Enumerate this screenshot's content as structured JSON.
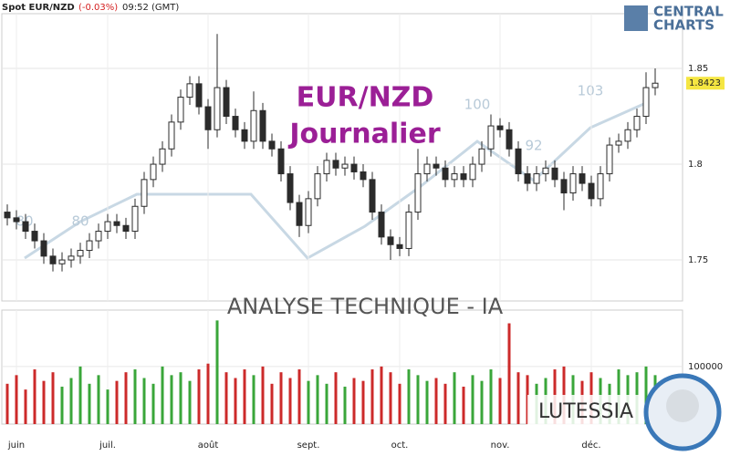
{
  "chart_data": {
    "type": "candlestick",
    "header": {
      "symbol": "Spot EUR/NZD",
      "change": "(-0.03%)",
      "time": "09:52 (GMT)"
    },
    "watermark": {
      "pair": "EUR/NZD",
      "period": "Journalier",
      "analysis": "ANALYSE TECHNIQUE - IA",
      "brand": "LUTESSIA"
    },
    "logo": [
      "CENTRAL",
      "CHARTS"
    ],
    "annotations": [
      "80",
      "80",
      "100",
      "92",
      "103"
    ],
    "candle_color": "#2b2b2b",
    "up_color": "#3aa63a",
    "down_color": "#cc2a2a",
    "open": [
      1.775,
      1.772,
      1.77,
      1.765,
      1.76,
      1.752,
      1.748,
      1.75,
      1.752,
      1.755,
      1.76,
      1.765,
      1.77,
      1.768,
      1.765,
      1.778,
      1.792,
      1.8,
      1.808,
      1.822,
      1.835,
      1.842,
      1.83,
      1.818,
      1.84,
      1.825,
      1.818,
      1.812,
      1.828,
      1.812,
      1.808,
      1.795,
      1.78,
      1.768,
      1.782,
      1.795,
      1.802,
      1.798,
      1.8,
      1.796,
      1.792,
      1.775,
      1.762,
      1.758,
      1.756,
      1.775,
      1.795,
      1.8,
      1.798,
      1.792,
      1.795,
      1.792,
      1.8,
      1.808,
      1.82,
      1.818,
      1.808,
      1.795,
      1.79,
      1.795,
      1.798,
      1.792,
      1.785,
      1.795,
      1.79,
      1.782,
      1.795,
      1.81,
      1.812,
      1.818,
      1.825,
      1.84
    ],
    "high": [
      1.779,
      1.776,
      1.774,
      1.769,
      1.764,
      1.756,
      1.754,
      1.756,
      1.759,
      1.764,
      1.769,
      1.774,
      1.774,
      1.772,
      1.782,
      1.796,
      1.804,
      1.812,
      1.826,
      1.839,
      1.846,
      1.846,
      1.834,
      1.868,
      1.844,
      1.829,
      1.822,
      1.838,
      1.832,
      1.816,
      1.812,
      1.799,
      1.784,
      1.786,
      1.799,
      1.806,
      1.806,
      1.804,
      1.804,
      1.8,
      1.796,
      1.779,
      1.766,
      1.762,
      1.779,
      1.808,
      1.804,
      1.804,
      1.802,
      1.799,
      1.799,
      1.804,
      1.812,
      1.826,
      1.824,
      1.822,
      1.812,
      1.799,
      1.799,
      1.802,
      1.802,
      1.796,
      1.799,
      1.799,
      1.794,
      1.799,
      1.814,
      1.816,
      1.822,
      1.829,
      1.848,
      1.85
    ],
    "low": [
      1.768,
      1.766,
      1.761,
      1.756,
      1.748,
      1.744,
      1.744,
      1.746,
      1.748,
      1.751,
      1.756,
      1.761,
      1.764,
      1.761,
      1.761,
      1.774,
      1.788,
      1.796,
      1.804,
      1.818,
      1.831,
      1.826,
      1.808,
      1.814,
      1.821,
      1.814,
      1.808,
      1.808,
      1.808,
      1.804,
      1.791,
      1.776,
      1.762,
      1.764,
      1.778,
      1.791,
      1.794,
      1.794,
      1.792,
      1.788,
      1.771,
      1.758,
      1.75,
      1.752,
      1.752,
      1.771,
      1.791,
      1.794,
      1.788,
      1.788,
      1.788,
      1.788,
      1.796,
      1.804,
      1.814,
      1.804,
      1.791,
      1.786,
      1.786,
      1.791,
      1.788,
      1.776,
      1.781,
      1.786,
      1.778,
      1.778,
      1.791,
      1.806,
      1.808,
      1.814,
      1.821,
      1.836
    ],
    "close": [
      1.772,
      1.77,
      1.765,
      1.76,
      1.752,
      1.748,
      1.75,
      1.752,
      1.755,
      1.76,
      1.765,
      1.77,
      1.768,
      1.765,
      1.778,
      1.792,
      1.8,
      1.808,
      1.822,
      1.835,
      1.842,
      1.83,
      1.818,
      1.84,
      1.825,
      1.818,
      1.812,
      1.828,
      1.812,
      1.808,
      1.795,
      1.78,
      1.768,
      1.782,
      1.795,
      1.802,
      1.798,
      1.8,
      1.796,
      1.792,
      1.775,
      1.762,
      1.758,
      1.756,
      1.775,
      1.795,
      1.8,
      1.798,
      1.792,
      1.795,
      1.792,
      1.8,
      1.808,
      1.82,
      1.818,
      1.808,
      1.795,
      1.79,
      1.795,
      1.798,
      1.792,
      1.785,
      1.795,
      1.79,
      1.782,
      1.795,
      1.81,
      1.812,
      1.818,
      1.825,
      1.84,
      1.8423
    ],
    "volume": [
      70000,
      85000,
      60000,
      95000,
      75000,
      90000,
      65000,
      80000,
      100000,
      70000,
      85000,
      60000,
      75000,
      90000,
      95000,
      80000,
      70000,
      100000,
      85000,
      90000,
      75000,
      95000,
      105000,
      180000,
      90000,
      80000,
      95000,
      85000,
      100000,
      70000,
      90000,
      80000,
      95000,
      75000,
      85000,
      70000,
      90000,
      65000,
      80000,
      75000,
      95000,
      100000,
      90000,
      70000,
      95000,
      85000,
      75000,
      80000,
      70000,
      90000,
      65000,
      85000,
      75000,
      95000,
      80000,
      175000,
      90000,
      85000,
      70000,
      80000,
      95000,
      100000,
      85000,
      75000,
      90000,
      80000,
      70000,
      95000,
      85000,
      90000,
      100000,
      85000
    ],
    "xticks": [
      {
        "value": 1,
        "label": "juin"
      },
      {
        "value": 11,
        "label": "juil."
      },
      {
        "value": 22,
        "label": "août"
      },
      {
        "value": 33,
        "label": "sept."
      },
      {
        "value": 43,
        "label": "oct."
      },
      {
        "value": 54,
        "label": "nov."
      },
      {
        "value": 64,
        "label": "déc."
      }
    ],
    "ylim": [
      1.7286,
      1.8786
    ],
    "yticks": [
      1.75,
      1.8,
      1.85
    ],
    "y2lim": [
      0,
      198000
    ],
    "y2ticks": [
      100000
    ],
    "grid": true
  }
}
